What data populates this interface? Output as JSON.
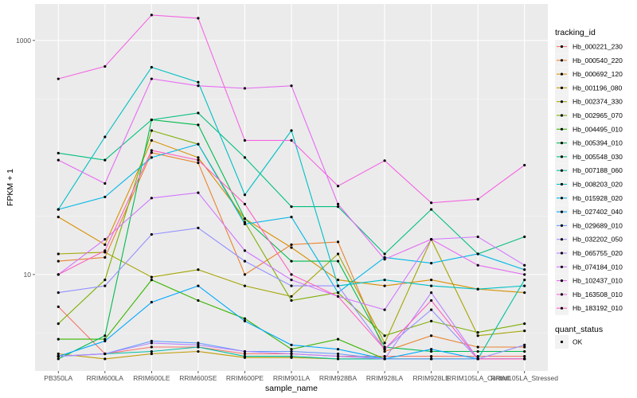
{
  "chart_data": {
    "type": "line",
    "xlabel": "sample_name",
    "ylabel": "FPKM + 1",
    "y_scale": "log10",
    "ylim": [
      1.5,
      2050
    ],
    "y_ticks": [
      {
        "value": 10,
        "label": "10"
      },
      {
        "value": 1000,
        "label": "1000"
      }
    ],
    "categories": [
      "PB350LA",
      "RRIM600LA",
      "RRIM600LE",
      "RRIM600SE",
      "RRIM600PE",
      "RRIM901LA",
      "RRIM928BA",
      "RRIM928LA",
      "RRIM928LE",
      "RRIM105LA_Control",
      "RRIM105LA_Stressed"
    ],
    "legend_position": "right",
    "grid": true,
    "color_legend": {
      "title": "tracking_id",
      "entries": [
        "Hb_000221_230",
        "Hb_000540_220",
        "Hb_000692_120",
        "Hb_001196_080",
        "Hb_002374_330",
        "Hb_002965_070",
        "Hb_004495_010",
        "Hb_005394_010",
        "Hb_005548_030",
        "Hb_007188_060",
        "Hb_008203_020",
        "Hb_015928_020",
        "Hb_027402_040",
        "Hb_029689_010",
        "Hb_032202_050",
        "Hb_065755_020",
        "Hb_074184_010",
        "Hb_102437_010",
        "Hb_163508_010",
        "Hb_183192_010"
      ]
    },
    "point_legend": {
      "title": "quant_status",
      "entries": [
        "OK"
      ]
    },
    "series": [
      {
        "name": "Hb_000221_230",
        "color": "#F8766D",
        "values": [
          5.3,
          2.1,
          2.4,
          2.4,
          2.1,
          2.1,
          2.0,
          2.0,
          2.0,
          2.0,
          2.0
        ]
      },
      {
        "name": "Hb_000540_220",
        "color": "#EA8331",
        "values": [
          13.0,
          14.0,
          110.0,
          90.0,
          10.0,
          18.0,
          19.0,
          2.2,
          3.0,
          2.4,
          2.4
        ]
      },
      {
        "name": "Hb_000692_120",
        "color": "#D89000",
        "values": [
          31.0,
          18.0,
          140.0,
          100.0,
          30.0,
          17.0,
          9.0,
          8.0,
          9.0,
          7.5,
          7.0
        ]
      },
      {
        "name": "Hb_001196_080",
        "color": "#C09B00",
        "values": [
          2.1,
          1.9,
          2.1,
          2.2,
          1.95,
          1.95,
          1.9,
          1.9,
          1.9,
          1.9,
          1.9
        ]
      },
      {
        "name": "Hb_002374_330",
        "color": "#A3A500",
        "values": [
          15.0,
          15.5,
          9.5,
          11.0,
          8.0,
          6.5,
          15.0,
          2.6,
          20.0,
          3.0,
          3.3
        ]
      },
      {
        "name": "Hb_002965_070",
        "color": "#7CAE00",
        "values": [
          3.8,
          9.0,
          170.0,
          130.0,
          28.0,
          6.0,
          7.0,
          3.0,
          4.0,
          3.2,
          3.8
        ]
      },
      {
        "name": "Hb_004495_010",
        "color": "#39B600",
        "values": [
          2.8,
          2.8,
          9.0,
          6.0,
          4.2,
          2.3,
          2.8,
          1.9,
          1.9,
          1.9,
          1.9
        ]
      },
      {
        "name": "Hb_005394_010",
        "color": "#00BB4E",
        "values": [
          1.9,
          3.0,
          210.0,
          190.0,
          30.0,
          13.0,
          13.0,
          2.4,
          2.2,
          2.2,
          2.2
        ]
      },
      {
        "name": "Hb_005548_030",
        "color": "#00BF7D",
        "values": [
          109.0,
          95.0,
          210.0,
          240.0,
          100.0,
          38.0,
          38.0,
          15.0,
          36.0,
          15.0,
          21.0
        ]
      },
      {
        "name": "Hb_007188_060",
        "color": "#00C1A3",
        "values": [
          2.0,
          2.1,
          2.2,
          2.4,
          2.0,
          2.0,
          1.9,
          1.9,
          1.9,
          1.9,
          9.0
        ]
      },
      {
        "name": "Hb_008203_020",
        "color": "#00BFC4",
        "values": [
          36.0,
          150.0,
          590.0,
          440.0,
          48.0,
          170.0,
          8.0,
          9.0,
          8.0,
          7.5,
          8.0
        ]
      },
      {
        "name": "Hb_015928_020",
        "color": "#00B8E7",
        "values": [
          36.0,
          46.0,
          100.0,
          130.0,
          27.0,
          31.0,
          7.0,
          14.0,
          12.5,
          15.0,
          11.0
        ]
      },
      {
        "name": "Hb_027402_040",
        "color": "#00A9FF",
        "values": [
          2.0,
          2.7,
          5.8,
          8.0,
          4.0,
          2.5,
          2.3,
          1.9,
          2.3,
          1.9,
          1.9
        ]
      },
      {
        "name": "Hb_029689_010",
        "color": "#619CFF",
        "values": [
          2.0,
          2.1,
          2.7,
          2.6,
          2.2,
          2.2,
          2.1,
          1.9,
          1.9,
          1.9,
          1.9
        ]
      },
      {
        "name": "Hb_032202_050",
        "color": "#9590FF",
        "values": [
          7.0,
          8.0,
          22.0,
          25.0,
          13.0,
          8.0,
          8.0,
          2.3,
          5.0,
          1.9,
          2.5
        ]
      },
      {
        "name": "Hb_065755_020",
        "color": "#B983FF",
        "values": [
          2.0,
          2.1,
          2.6,
          2.5,
          2.2,
          2.1,
          2.0,
          1.9,
          7.0,
          1.9,
          1.9
        ]
      },
      {
        "name": "Hb_074184_010",
        "color": "#D376FF",
        "values": [
          10.0,
          20.0,
          45.0,
          50.0,
          16.0,
          9.0,
          6.5,
          5.0,
          20.0,
          21.0,
          12.0
        ]
      },
      {
        "name": "Hb_102437_010",
        "color": "#E76BF3",
        "values": [
          95.0,
          60.0,
          470.0,
          410.0,
          390.0,
          410.0,
          40.0,
          13.5,
          20.0,
          12.0,
          10.0
        ]
      },
      {
        "name": "Hb_163508_010",
        "color": "#F564E3",
        "values": [
          470.0,
          600.0,
          1650.0,
          1550.0,
          140.0,
          140.0,
          57.0,
          94.0,
          41.0,
          44.0,
          86.0
        ]
      },
      {
        "name": "Hb_183192_010",
        "color": "#FF61C3",
        "values": [
          10.0,
          16.0,
          115.0,
          95.0,
          40.0,
          10.0,
          6.5,
          2.3,
          6.0,
          1.9,
          1.9
        ]
      }
    ]
  }
}
